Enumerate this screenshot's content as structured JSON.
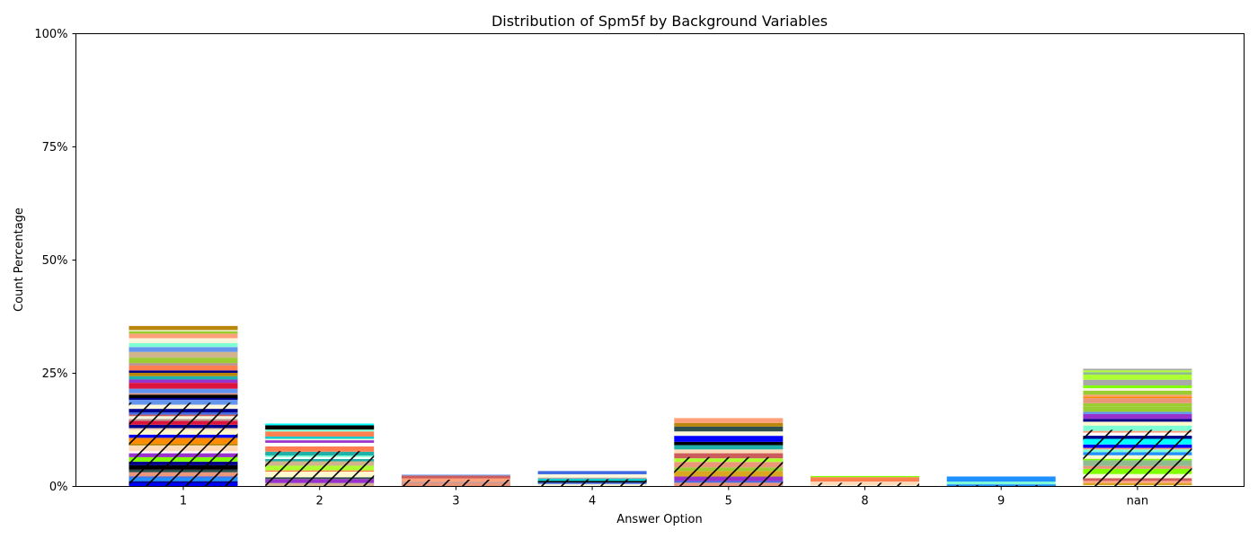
{
  "chart_data": {
    "type": "bar",
    "stacked": true,
    "title": "Distribution of Spm5f by Background Variables",
    "xlabel": "Answer Option",
    "ylabel": "Count Percentage",
    "ylim": [
      0,
      100
    ],
    "yticks": [
      0,
      25,
      50,
      75,
      100
    ],
    "ytick_labels": [
      "0%",
      "25%",
      "50%",
      "75%",
      "100%"
    ],
    "categories": [
      "1",
      "2",
      "3",
      "4",
      "5",
      "8",
      "9",
      "nan"
    ],
    "totals": [
      35.5,
      13.9,
      2.6,
      3.4,
      15.1,
      2.3,
      2.2,
      26.0
    ],
    "hatched_portion": [
      18.5,
      7.8,
      1.5,
      1.6,
      6.5,
      0.8,
      0.3,
      12.5
    ],
    "palette": [
      "#7fffd4",
      "#ffffff",
      "#000000",
      "#00ffff",
      "#ff7f50",
      "#7fff00",
      "#ff8c00",
      "#00008b",
      "#fffacd",
      "#00ced1",
      "#dc143c",
      "#f5f5dc",
      "#fff8dc",
      "#e9967a",
      "#b8860b",
      "#9932cc",
      "#1e90ff",
      "#0000ff",
      "#8fbc8f",
      "#a9a9a9",
      "#6495ed",
      "#daa520",
      "#adff2f",
      "#ffa07a",
      "#bc8f8f",
      "#2f4f4f",
      "#20b2aa",
      "#d2b48c",
      "#4169e1",
      "#cd5c5c",
      "#9acd32",
      "#ffdab9"
    ],
    "grid": false
  }
}
